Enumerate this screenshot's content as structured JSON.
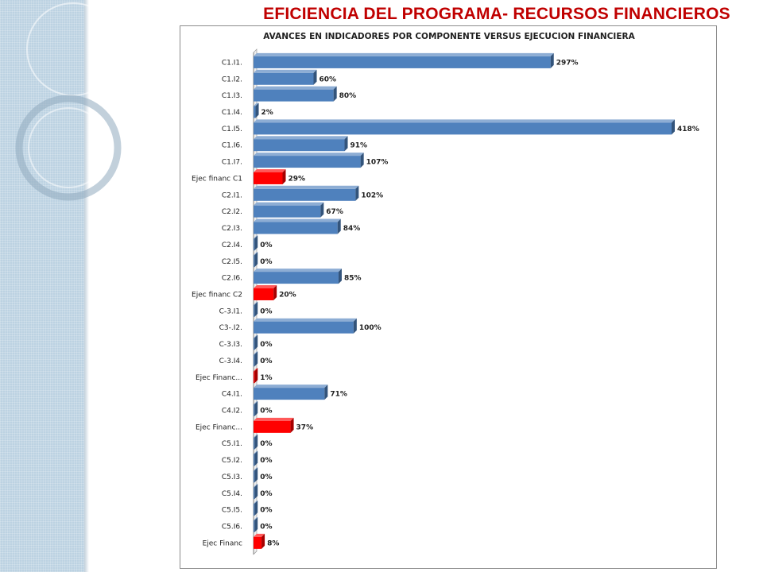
{
  "slide": {
    "title": "EFICIENCIA DEL PROGRAMA- RECURSOS FINANCIEROS"
  },
  "colors": {
    "indicator_bar": "#4f81bd",
    "financial_bar": "#ff0000",
    "title": "#c00000",
    "side_band": "#bcd2e2"
  },
  "chart_data": {
    "type": "bar",
    "orientation": "horizontal",
    "style": "3d",
    "title": "AVANCES EN INDICADORES POR COMPONENTE VERSUS EJECUCION FINANCIERA",
    "xlabel": "",
    "ylabel": "",
    "xlim": [
      0,
      418
    ],
    "unit": "%",
    "grid": false,
    "legend": "none",
    "categories": [
      "C1.I1.",
      "C1.I2.",
      "C1.I3.",
      "C1.I4.",
      "C1.I5.",
      "C1.I6.",
      "C1.I7.",
      "Ejec financ C1",
      "C2.I1.",
      "C2.I2.",
      "C2.I3.",
      "C2.I4.",
      "C2.I5.",
      "C2.I6.",
      "Ejec financ C2",
      "C-3.I1.",
      "C3-.I2.",
      "C-3.I3.",
      "C-3.I4.",
      "Ejec Financ...",
      "C4.I1.",
      "C4.I2.",
      "Ejec Financ...",
      "C5.I1.",
      "C5.I2.",
      "C5.I3.",
      "C5.I4.",
      "C5.I5.",
      "C5.I6.",
      "Ejec Financ"
    ],
    "values": [
      297,
      60,
      80,
      2,
      418,
      91,
      107,
      29,
      102,
      67,
      84,
      0,
      0,
      85,
      20,
      0,
      100,
      0,
      0,
      1,
      71,
      0,
      37,
      0,
      0,
      0,
      0,
      0,
      0,
      8
    ],
    "value_labels": [
      "297%",
      "60%",
      "80%",
      "2%",
      "418%",
      "91%",
      "107%",
      "29%",
      "102%",
      "67%",
      "84%",
      "0%",
      "0%",
      "85%",
      "20%",
      "0%",
      "100%",
      "0%",
      "0%",
      "1%",
      "71%",
      "0%",
      "37%",
      "0%",
      "0%",
      "0%",
      "0%",
      "0%",
      "0%",
      "8%"
    ],
    "financial_execution": [
      false,
      false,
      false,
      false,
      false,
      false,
      false,
      true,
      false,
      false,
      false,
      false,
      false,
      false,
      true,
      false,
      false,
      false,
      false,
      true,
      false,
      false,
      true,
      false,
      false,
      false,
      false,
      false,
      false,
      true
    ]
  }
}
